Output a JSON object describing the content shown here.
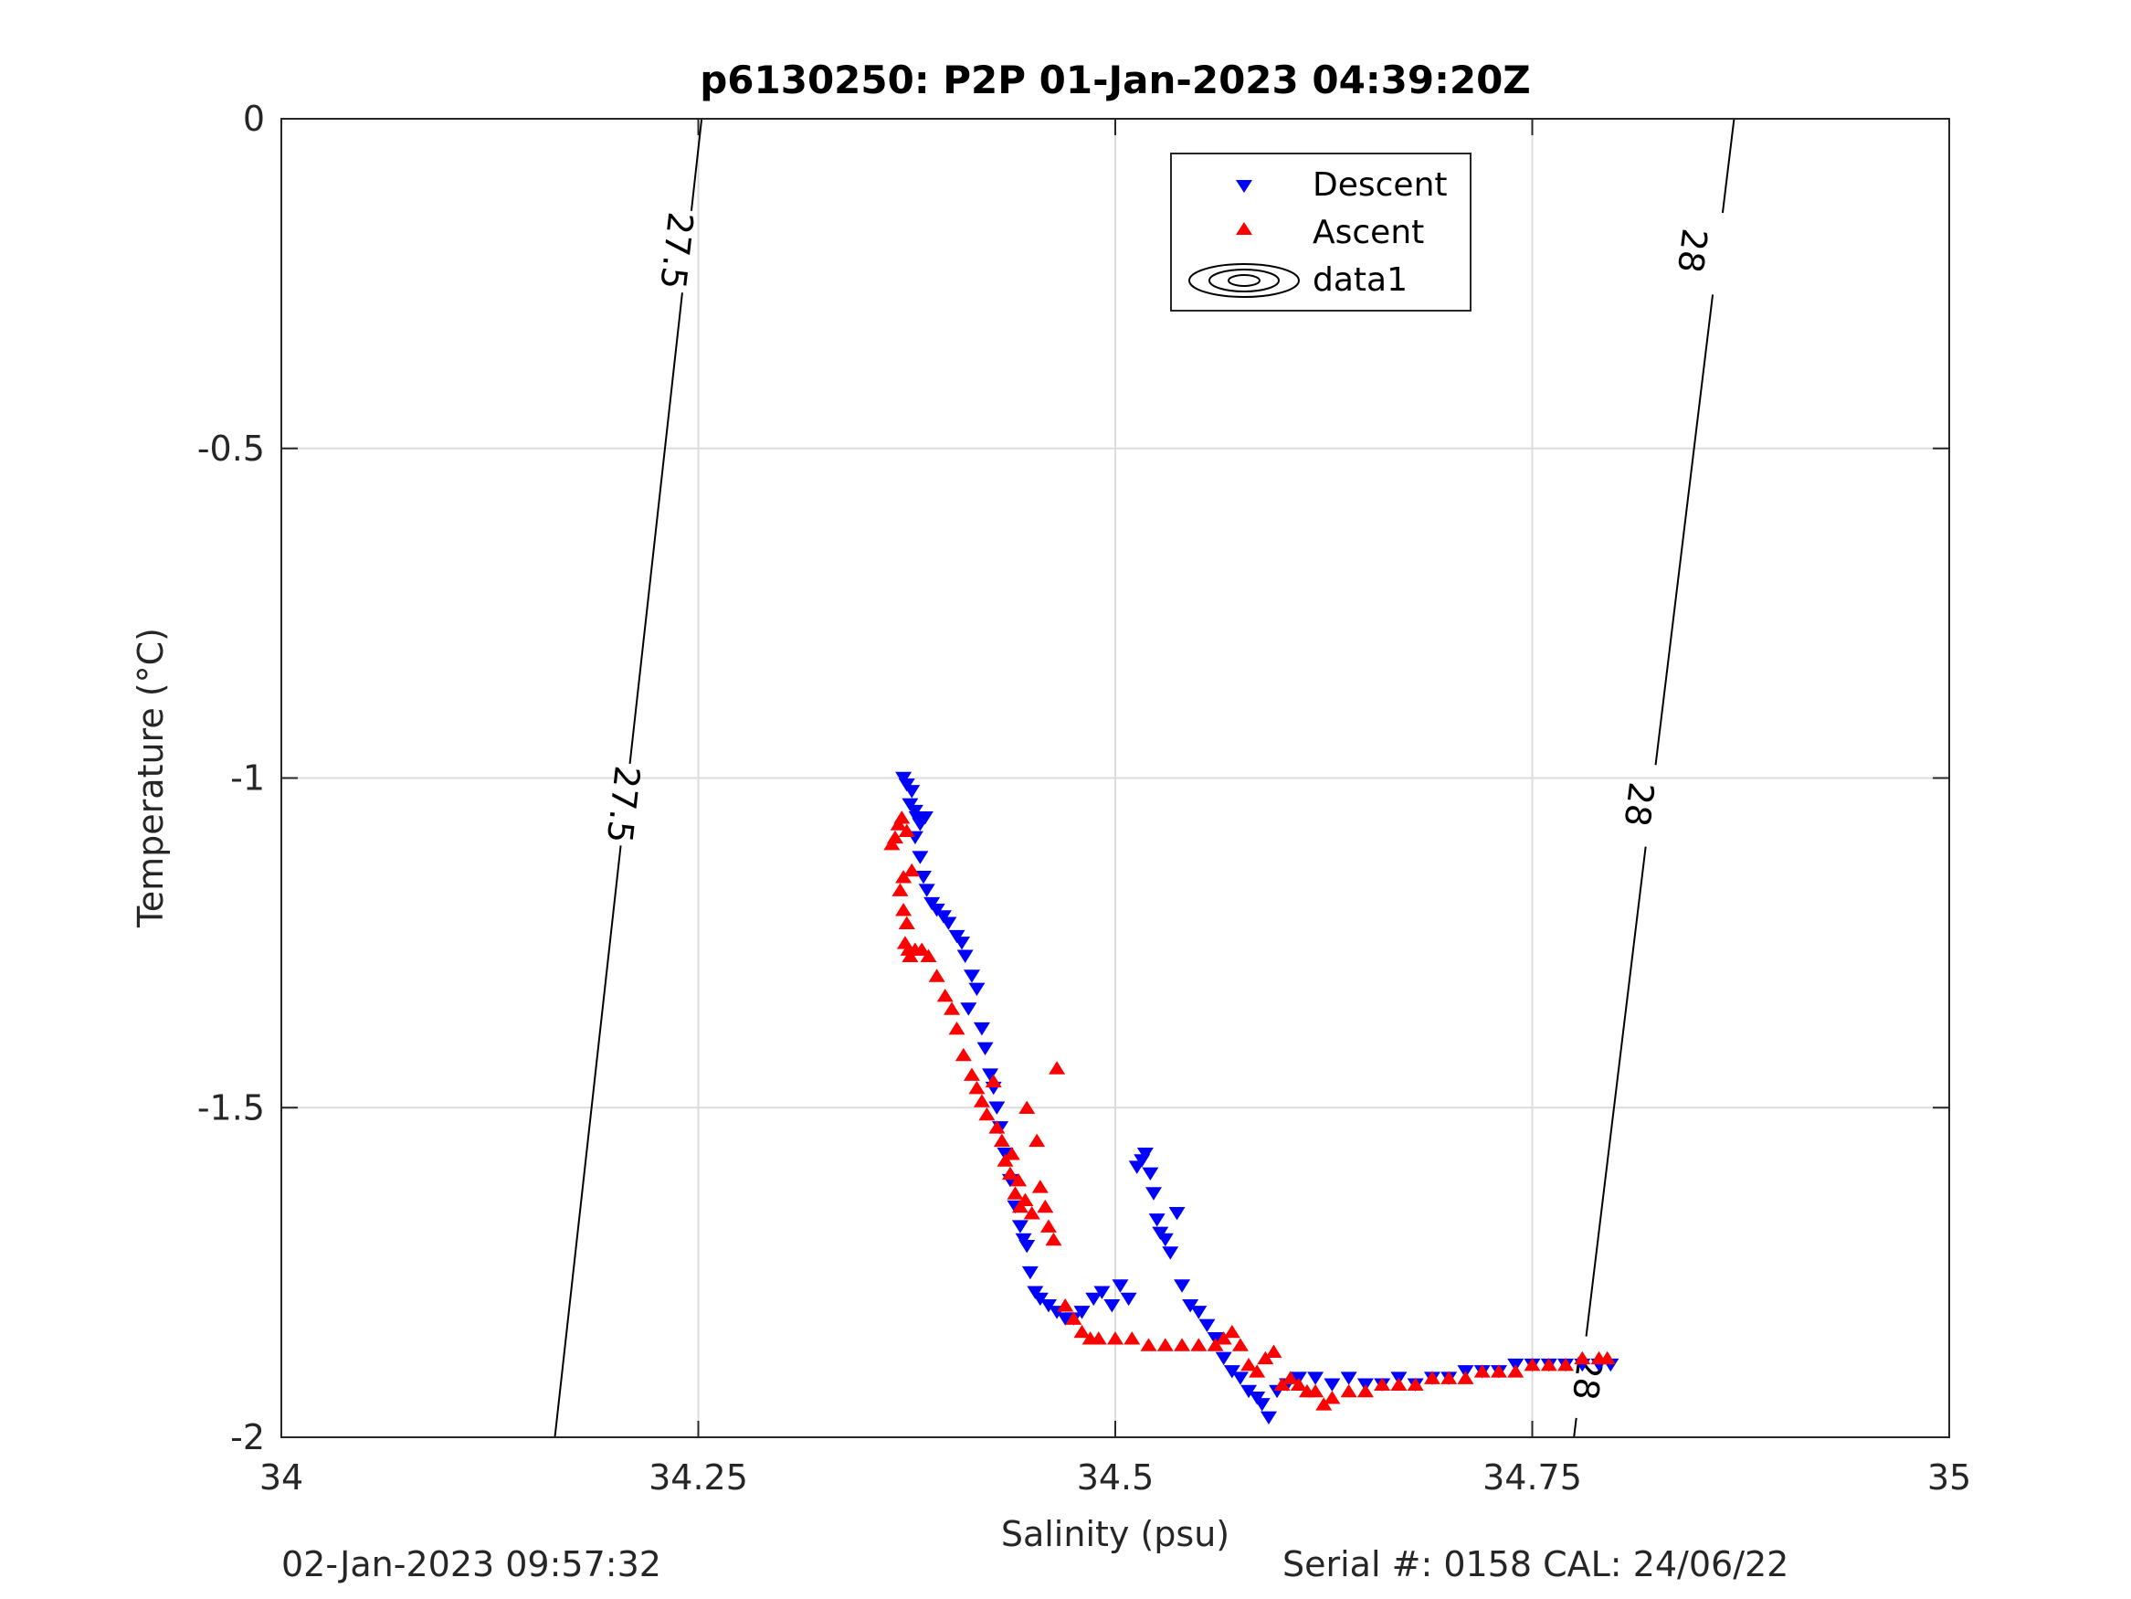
{
  "chart_data": {
    "type": "scatter",
    "title": "p6130250: P2P 01-Jan-2023 04:39:20Z",
    "xlabel": "Salinity (psu)",
    "ylabel": "Temperature (°C)",
    "xlim": [
      34,
      35
    ],
    "ylim": [
      -2,
      0
    ],
    "xticks": [
      34,
      34.25,
      34.5,
      34.75,
      35
    ],
    "xtick_labels": [
      "34",
      "34.25",
      "34.5",
      "34.75",
      "35"
    ],
    "yticks": [
      -2,
      -1.5,
      -1,
      -0.5,
      0
    ],
    "ytick_labels": [
      "-2",
      "-1.5",
      "-1",
      "-0.5",
      "0"
    ],
    "grid": true,
    "legend": {
      "placement": "top-center",
      "entries": [
        "Descent",
        "Ascent",
        "data1"
      ]
    },
    "colors": {
      "descent": "#0000ff",
      "ascent": "#ff0000",
      "contour": "#000000",
      "grid": "#dcdcdc"
    },
    "contours": [
      {
        "level_label": "27.5",
        "points": [
          [
            34.164,
            -2
          ],
          [
            34.252,
            0
          ]
        ],
        "label_positions": [
          [
            34.205,
            -1.04
          ],
          [
            34.237,
            -0.2
          ]
        ]
      },
      {
        "level_label": "28",
        "points": [
          [
            34.775,
            -2
          ],
          [
            34.871,
            0
          ]
        ],
        "label_positions": [
          [
            34.783,
            -1.91
          ],
          [
            34.814,
            -1.04
          ],
          [
            34.846,
            -0.2
          ]
        ]
      }
    ],
    "series": [
      {
        "name": "Descent",
        "marker": "triangle-down",
        "x": [
          34.373,
          34.375,
          34.378,
          34.377,
          34.38,
          34.381,
          34.383,
          34.386,
          34.38,
          34.383,
          34.385,
          34.387,
          34.39,
          34.393,
          34.397,
          34.4,
          34.405,
          34.408,
          34.41,
          34.414,
          34.417,
          34.412,
          34.42,
          34.422,
          34.425,
          34.427,
          34.429,
          34.431,
          34.434,
          34.437,
          34.44,
          34.443,
          34.445,
          34.447,
          34.449,
          34.452,
          34.455,
          34.46,
          34.465,
          34.47,
          34.475,
          34.48,
          34.487,
          34.492,
          34.498,
          34.503,
          34.508,
          34.513,
          34.516,
          34.518,
          34.521,
          34.523,
          34.525,
          34.527,
          34.53,
          34.533,
          34.537,
          34.54,
          34.545,
          34.55,
          34.555,
          34.56,
          34.565,
          34.57,
          34.575,
          34.58,
          34.585,
          34.588,
          34.592,
          34.597,
          34.603,
          34.61,
          34.62,
          34.63,
          34.64,
          34.65,
          34.66,
          34.67,
          34.68,
          34.69,
          34.7,
          34.71,
          34.72,
          34.73,
          34.74,
          34.75,
          34.76,
          34.77,
          34.78,
          34.79,
          34.797
        ],
        "y": [
          -1.0,
          -1.01,
          -1.02,
          -1.04,
          -1.05,
          -1.06,
          -1.07,
          -1.06,
          -1.09,
          -1.12,
          -1.15,
          -1.17,
          -1.19,
          -1.2,
          -1.21,
          -1.22,
          -1.24,
          -1.25,
          -1.27,
          -1.3,
          -1.32,
          -1.35,
          -1.38,
          -1.41,
          -1.45,
          -1.47,
          -1.5,
          -1.53,
          -1.57,
          -1.61,
          -1.65,
          -1.68,
          -1.7,
          -1.71,
          -1.75,
          -1.78,
          -1.79,
          -1.8,
          -1.81,
          -1.82,
          -1.82,
          -1.81,
          -1.79,
          -1.78,
          -1.8,
          -1.77,
          -1.79,
          -1.59,
          -1.58,
          -1.57,
          -1.6,
          -1.63,
          -1.67,
          -1.69,
          -1.7,
          -1.72,
          -1.66,
          -1.77,
          -1.8,
          -1.81,
          -1.83,
          -1.85,
          -1.88,
          -1.9,
          -1.91,
          -1.93,
          -1.94,
          -1.95,
          -1.97,
          -1.93,
          -1.92,
          -1.91,
          -1.91,
          -1.92,
          -1.91,
          -1.92,
          -1.92,
          -1.91,
          -1.92,
          -1.91,
          -1.91,
          -1.9,
          -1.9,
          -1.9,
          -1.89,
          -1.89,
          -1.89,
          -1.89,
          -1.89,
          -1.89,
          -1.89
        ]
      },
      {
        "name": "Ascent",
        "marker": "triangle-up",
        "x": [
          34.366,
          34.368,
          34.37,
          34.372,
          34.375,
          34.373,
          34.371,
          34.373,
          34.375,
          34.378,
          34.376,
          34.374,
          34.377,
          34.38,
          34.384,
          34.388,
          34.393,
          34.398,
          34.402,
          34.405,
          34.409,
          34.414,
          34.417,
          34.42,
          34.423,
          34.427,
          34.429,
          34.432,
          34.434,
          34.437,
          34.44,
          34.443,
          34.438,
          34.442,
          34.446,
          34.45,
          34.455,
          34.447,
          34.453,
          34.458,
          34.46,
          34.463,
          34.47,
          34.475,
          34.48,
          34.485,
          34.49,
          34.5,
          34.51,
          34.52,
          34.53,
          34.54,
          34.55,
          34.56,
          34.565,
          34.57,
          34.575,
          34.58,
          34.585,
          34.59,
          34.595,
          34.6,
          34.605,
          34.61,
          34.615,
          34.62,
          34.625,
          34.63,
          34.64,
          34.65,
          34.66,
          34.67,
          34.68,
          34.69,
          34.7,
          34.71,
          34.72,
          34.73,
          34.74,
          34.75,
          34.76,
          34.77,
          34.78,
          34.79,
          34.795,
          34.465
        ],
        "y": [
          -1.1,
          -1.09,
          -1.07,
          -1.06,
          -1.08,
          -1.15,
          -1.17,
          -1.2,
          -1.22,
          -1.14,
          -1.26,
          -1.25,
          -1.27,
          -1.26,
          -1.26,
          -1.27,
          -1.3,
          -1.33,
          -1.35,
          -1.38,
          -1.42,
          -1.45,
          -1.47,
          -1.49,
          -1.51,
          -1.46,
          -1.53,
          -1.55,
          -1.58,
          -1.6,
          -1.63,
          -1.65,
          -1.57,
          -1.61,
          -1.64,
          -1.66,
          -1.62,
          -1.5,
          -1.55,
          -1.65,
          -1.68,
          -1.7,
          -1.8,
          -1.82,
          -1.84,
          -1.85,
          -1.85,
          -1.85,
          -1.85,
          -1.86,
          -1.86,
          -1.86,
          -1.86,
          -1.86,
          -1.85,
          -1.84,
          -1.86,
          -1.89,
          -1.9,
          -1.88,
          -1.87,
          -1.92,
          -1.91,
          -1.92,
          -1.93,
          -1.93,
          -1.95,
          -1.94,
          -1.93,
          -1.93,
          -1.92,
          -1.92,
          -1.92,
          -1.91,
          -1.91,
          -1.91,
          -1.9,
          -1.9,
          -1.9,
          -1.89,
          -1.89,
          -1.89,
          -1.88,
          -1.88,
          -1.88,
          -1.44
        ]
      }
    ]
  },
  "footer": {
    "left": "02-Jan-2023 09:57:32",
    "right": "Serial #: 0158  CAL: 24/06/22"
  }
}
